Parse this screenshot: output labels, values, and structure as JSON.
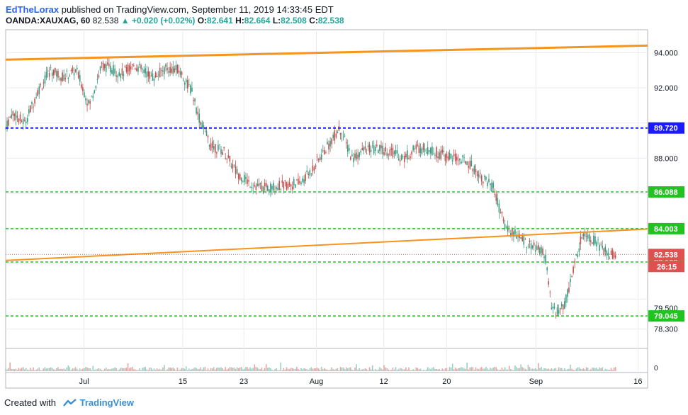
{
  "header": {
    "author": "EdTheLorax",
    "published": "published on TradingView.com, September 11, 2019 14:33:45 EDT",
    "symbol": "OANDA:XAUXAG, 60",
    "last": "82.538",
    "change": "▲ +0.020 (+0.02%)",
    "o_label": "O:",
    "o": "82.641",
    "h_label": "H:",
    "h": "82.664",
    "l_label": "L:",
    "l": "82.508",
    "c_label": "C:",
    "c": "82.538"
  },
  "footer": {
    "created_with": "Created with",
    "brand": "TradingView"
  },
  "colors": {
    "grid": "#e8ebef",
    "trend_orange": "#f7941d",
    "level_green": "#21c321",
    "level_blue": "#1a1aff",
    "candle_up": "#3a9a80",
    "candle_down": "#c0504d",
    "price_label": "#e05050",
    "green_label": "#21c321",
    "blue_label": "#1a1aff"
  },
  "chart_data": {
    "type": "candlestick",
    "symbol": "OANDA:XAUXAG",
    "interval": "60",
    "x_tick_labels": [
      "Jul",
      "15",
      "23",
      "Aug",
      "12",
      "20",
      "Sep",
      "16"
    ],
    "y_tick_labels": [
      "94.000",
      "92.000",
      "88.000",
      "79.500",
      "78.300"
    ],
    "y_range": [
      77.2,
      95.3
    ],
    "horizontal_levels": [
      {
        "value": 89.72,
        "label": "89.720",
        "color": "blue",
        "style": "dashed"
      },
      {
        "value": 86.088,
        "label": "86.088",
        "color": "green",
        "style": "dashed"
      },
      {
        "value": 84.003,
        "label": "84.003",
        "color": "green",
        "style": "dashed"
      },
      {
        "value": 82.109,
        "label": "82.109",
        "color": "green",
        "style": "dashed"
      },
      {
        "value": 79.045,
        "label": "79.045",
        "color": "green",
        "style": "dashed"
      }
    ],
    "trendlines": [
      {
        "from": [
          0,
          93.6
        ],
        "to": [
          1,
          94.4
        ],
        "color": "orange"
      },
      {
        "from": [
          0,
          82.2
        ],
        "to": [
          1,
          83.98
        ],
        "color": "orange"
      }
    ],
    "last_price": {
      "value": 82.538,
      "label": "82.538"
    },
    "countdown": "26:15",
    "price_path": [
      [
        0,
        89.7
      ],
      [
        0.01,
        90.6
      ],
      [
        0.03,
        90.0
      ],
      [
        0.05,
        91.8
      ],
      [
        0.07,
        93.0
      ],
      [
        0.09,
        92.6
      ],
      [
        0.11,
        93.0
      ],
      [
        0.13,
        91.0
      ],
      [
        0.15,
        93.3
      ],
      [
        0.18,
        92.8
      ],
      [
        0.2,
        93.3
      ],
      [
        0.23,
        92.6
      ],
      [
        0.25,
        93.1
      ],
      [
        0.27,
        93.0
      ],
      [
        0.29,
        91.8
      ],
      [
        0.3,
        90.4
      ],
      [
        0.32,
        88.7
      ],
      [
        0.34,
        88.4
      ],
      [
        0.36,
        87.2
      ],
      [
        0.38,
        86.6
      ],
      [
        0.4,
        86.3
      ],
      [
        0.42,
        86.4
      ],
      [
        0.44,
        86.5
      ],
      [
        0.46,
        86.6
      ],
      [
        0.48,
        87.5
      ],
      [
        0.5,
        88.6
      ],
      [
        0.52,
        89.7
      ],
      [
        0.54,
        88.0
      ],
      [
        0.56,
        88.5
      ],
      [
        0.58,
        88.5
      ],
      [
        0.6,
        88.4
      ],
      [
        0.62,
        88.0
      ],
      [
        0.64,
        88.6
      ],
      [
        0.66,
        88.5
      ],
      [
        0.68,
        88.2
      ],
      [
        0.7,
        88.0
      ],
      [
        0.72,
        87.8
      ],
      [
        0.74,
        87.0
      ],
      [
        0.76,
        86.3
      ],
      [
        0.77,
        85.0
      ],
      [
        0.78,
        84.0
      ],
      [
        0.79,
        83.8
      ],
      [
        0.8,
        83.5
      ],
      [
        0.82,
        83.0
      ],
      [
        0.84,
        82.6
      ],
      [
        0.85,
        79.5
      ],
      [
        0.86,
        79.3
      ],
      [
        0.87,
        79.6
      ],
      [
        0.88,
        81.0
      ],
      [
        0.89,
        82.5
      ],
      [
        0.9,
        83.9
      ],
      [
        0.91,
        83.5
      ],
      [
        0.92,
        83.3
      ],
      [
        0.93,
        82.8
      ],
      [
        0.94,
        82.5
      ],
      [
        0.95,
        82.538
      ]
    ]
  }
}
